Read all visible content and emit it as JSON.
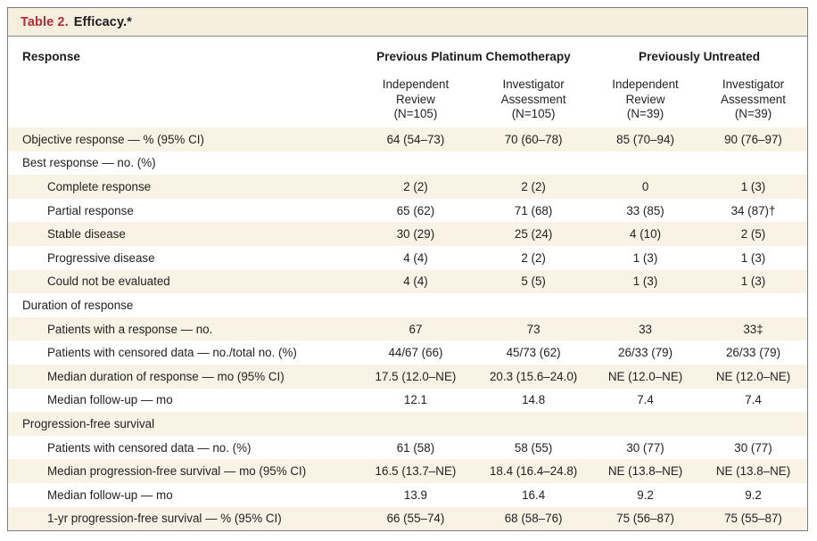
{
  "table": {
    "title": {
      "label": "Table 2.",
      "text": "Efficacy.*"
    },
    "colors": {
      "accent_red": "#b42b3a",
      "titlebar_cream": "#f6efdf",
      "stripe_cream": "#f9f3e5",
      "border_gray": "#7d7d7d",
      "text": "#222222"
    },
    "header": {
      "response_label": "Response",
      "groups": [
        {
          "label": "Previous Platinum Chemotherapy",
          "colspan": 2
        },
        {
          "label": "Previously Untreated",
          "colspan": 2
        }
      ],
      "columns": [
        "Independent\nReview\n(N=105)",
        "Investigator\nAssessment\n(N=105)",
        "Independent\nReview\n(N=39)",
        "Investigator\nAssessment\n(N=39)"
      ]
    },
    "rows": [
      {
        "label": "Objective response — % (95% CI)",
        "indent": 0,
        "values": [
          "64 (54–73)",
          "70 (60–78)",
          "85 (70–94)",
          "90 (76–97)"
        ]
      },
      {
        "label": "Best response — no. (%)",
        "indent": 0,
        "values": [
          "",
          "",
          "",
          ""
        ]
      },
      {
        "label": "Complete response",
        "indent": 1,
        "values": [
          "2 (2)",
          "2 (2)",
          "0",
          "1 (3)"
        ]
      },
      {
        "label": "Partial response",
        "indent": 1,
        "values": [
          "65 (62)",
          "71 (68)",
          "33 (85)",
          "34 (87)†"
        ]
      },
      {
        "label": "Stable disease",
        "indent": 1,
        "values": [
          "30 (29)",
          "25 (24)",
          "4 (10)",
          "2 (5)"
        ]
      },
      {
        "label": "Progressive disease",
        "indent": 1,
        "values": [
          "4 (4)",
          "2 (2)",
          "1 (3)",
          "1 (3)"
        ]
      },
      {
        "label": "Could not be evaluated",
        "indent": 1,
        "values": [
          "4 (4)",
          "5 (5)",
          "1 (3)",
          "1 (3)"
        ]
      },
      {
        "label": "Duration of response",
        "indent": 0,
        "values": [
          "",
          "",
          "",
          ""
        ]
      },
      {
        "label": "Patients with a response — no.",
        "indent": 1,
        "values": [
          "67",
          "73",
          "33",
          "33‡"
        ]
      },
      {
        "label": "Patients with censored data — no./total no. (%)",
        "indent": 1,
        "values": [
          "44/67 (66)",
          "45/73 (62)",
          "26/33 (79)",
          "26/33 (79)"
        ]
      },
      {
        "label": "Median duration of response — mo (95% CI)",
        "indent": 1,
        "values": [
          "17.5 (12.0–NE)",
          "20.3 (15.6–24.0)",
          "NE (12.0–NE)",
          "NE (12.0–NE)"
        ]
      },
      {
        "label": "Median follow-up — mo",
        "indent": 1,
        "values": [
          "12.1",
          "14.8",
          "7.4",
          "7.4"
        ]
      },
      {
        "label": "Progression-free survival",
        "indent": 0,
        "values": [
          "",
          "",
          "",
          ""
        ]
      },
      {
        "label": "Patients with censored data — no. (%)",
        "indent": 1,
        "values": [
          "61 (58)",
          "58 (55)",
          "30 (77)",
          "30 (77)"
        ]
      },
      {
        "label": "Median progression-free survival — mo (95% CI)",
        "indent": 1,
        "values": [
          "16.5 (13.7–NE)",
          "18.4 (16.4–24.8)",
          "NE (13.8–NE)",
          "NE (13.8–NE)"
        ]
      },
      {
        "label": "Median follow-up — mo",
        "indent": 1,
        "values": [
          "13.9",
          "16.4",
          "9.2",
          "9.2"
        ]
      },
      {
        "label": "1-yr progression-free survival — % (95% CI)",
        "indent": 1,
        "values": [
          "66 (55–74)",
          "68 (58–76)",
          "75 (56–87)",
          "75 (55–87)"
        ]
      }
    ]
  }
}
